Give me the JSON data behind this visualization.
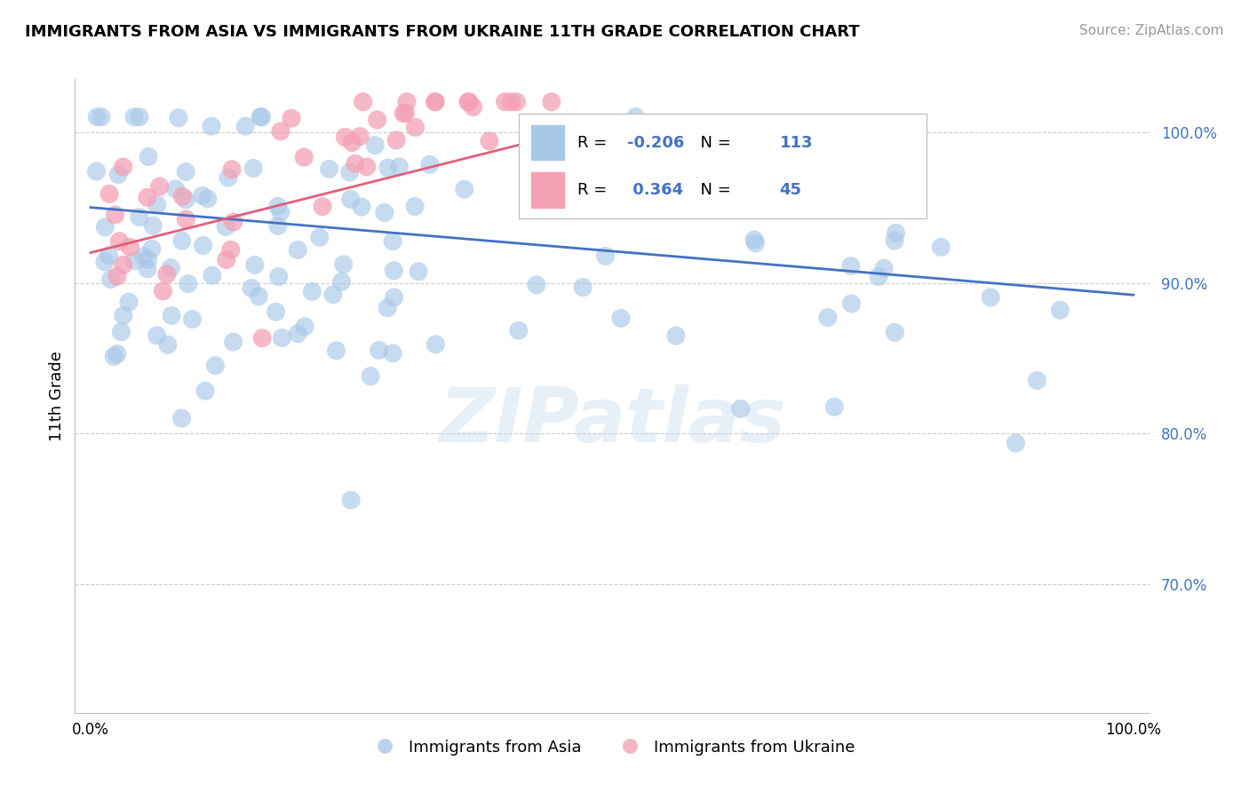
{
  "title": "IMMIGRANTS FROM ASIA VS IMMIGRANTS FROM UKRAINE 11TH GRADE CORRELATION CHART",
  "source": "Source: ZipAtlas.com",
  "ylabel": "11th Grade",
  "ytick_labels": [
    "70.0%",
    "80.0%",
    "90.0%",
    "100.0%"
  ],
  "ytick_values": [
    0.7,
    0.8,
    0.9,
    1.0
  ],
  "ylim": [
    0.615,
    1.035
  ],
  "xlim": [
    -0.015,
    1.015
  ],
  "legend_label_asia": "Immigrants from Asia",
  "legend_label_ukraine": "Immigrants from Ukraine",
  "asia_color": "#a8c8e8",
  "ukraine_color": "#f4a0b5",
  "asia_line_color": "#4472c4",
  "ukraine_line_color": "#e0607a",
  "asia_R": -0.206,
  "asia_N": 113,
  "ukraine_R": 0.364,
  "ukraine_N": 45,
  "watermark": "ZIPatlas",
  "background_color": "#ffffff",
  "grid_color": "#cccccc",
  "tick_label_color": "#4472c4",
  "asia_line_start_y": 0.95,
  "asia_line_end_y": 0.892,
  "ukraine_line_start_y": 0.92,
  "ukraine_line_end_y": 1.0,
  "ukraine_line_end_x": 0.46
}
